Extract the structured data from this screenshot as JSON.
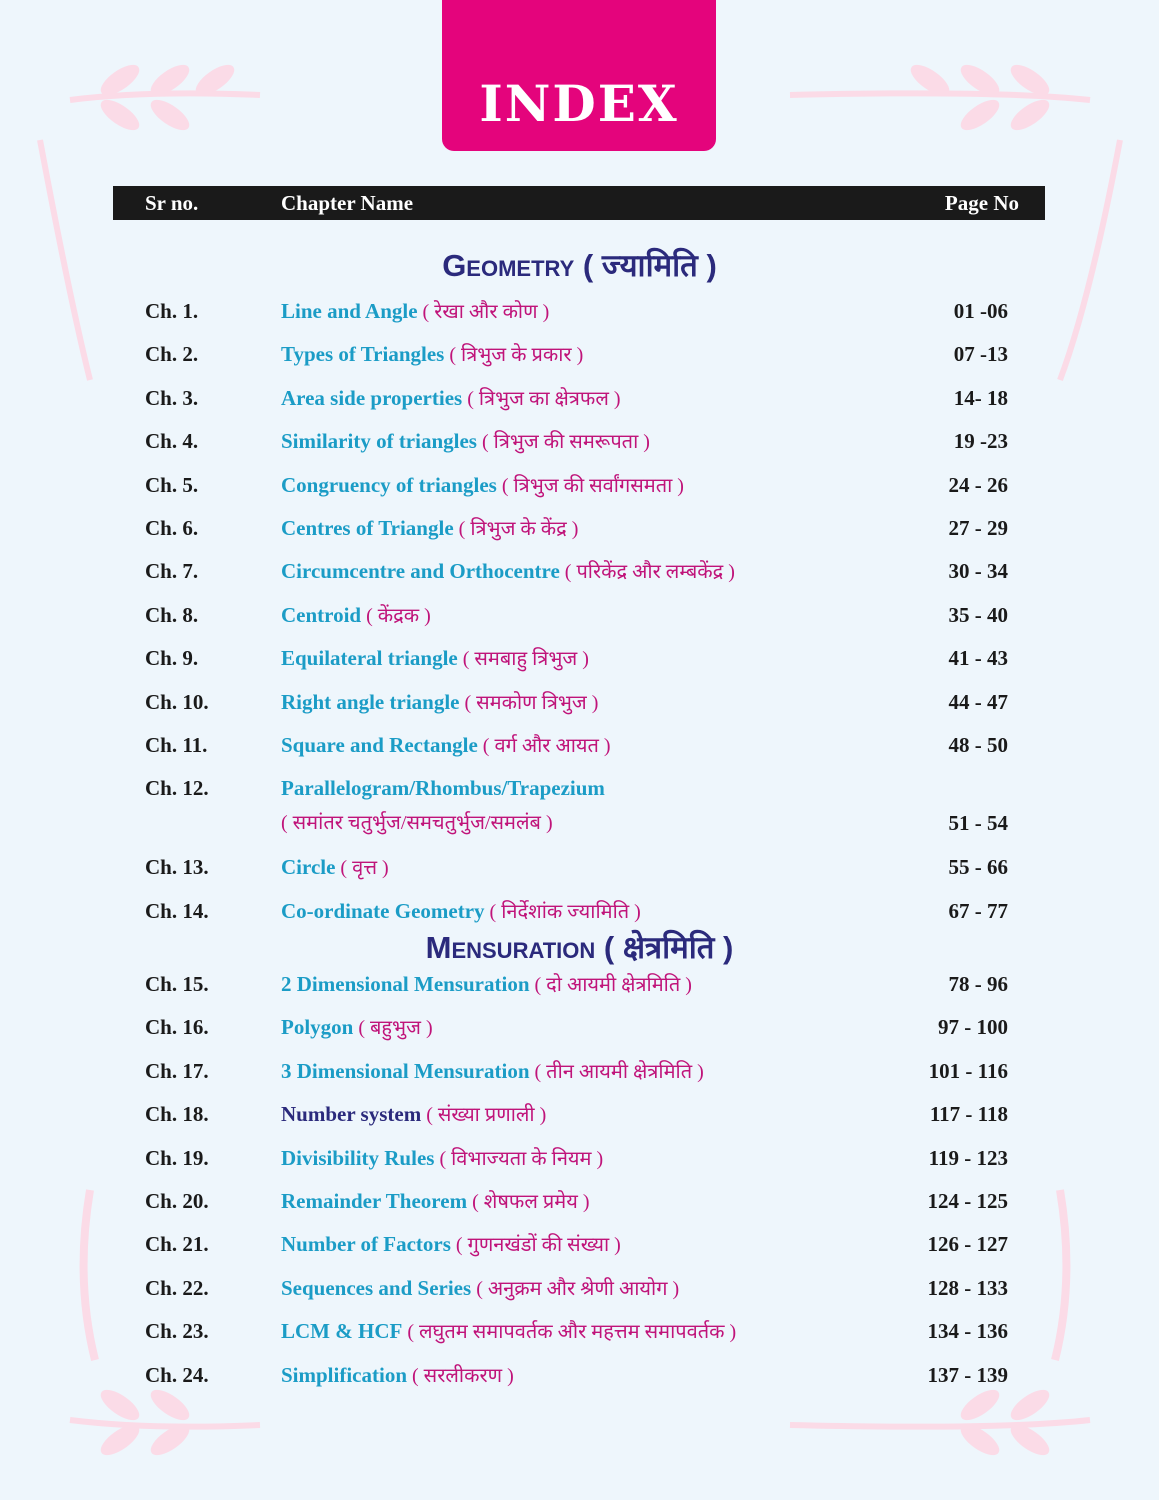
{
  "title": "INDEX",
  "header": {
    "sr": "Sr no.",
    "name": "Chapter Name",
    "page": "Page No"
  },
  "sections": [
    {
      "title": "Geometry",
      "hindi": "( ज्यामिति )"
    },
    {
      "title": "Mensuration",
      "hindi": "( क्षेत्रमिति )"
    }
  ],
  "geometry_rows": [
    {
      "sr": "Ch. 1.",
      "en": "Line and Angle",
      "hi": "( रेखा और कोण )",
      "page": "01 -06"
    },
    {
      "sr": "Ch. 2.",
      "en": "Types of Triangles",
      "hi": "( त्रिभुज के प्रकार )",
      "page": "07 -13"
    },
    {
      "sr": "Ch. 3.",
      "en": "Area side properties",
      "hi": "( त्रिभुज का क्षेत्रफल )",
      "page": "14- 18"
    },
    {
      "sr": "Ch. 4.",
      "en": "Similarity of triangles",
      "hi": "( त्रिभुज की समरूपता )",
      "page": "19 -23"
    },
    {
      "sr": "Ch. 5.",
      "en": "Congruency of triangles",
      "hi": "( त्रिभुज की सर्वांगसमता )",
      "page": "24 - 26"
    },
    {
      "sr": "Ch. 6.",
      "en": "Centres of Triangle",
      "hi": "( त्रिभुज के केंद्र )",
      "page": "27 - 29"
    },
    {
      "sr": "Ch. 7.",
      "en": "Circumcentre and Orthocentre",
      "hi": "( परिकेंद्र और लम्बकेंद्र )",
      "page": "30 - 34"
    },
    {
      "sr": "Ch. 8.",
      "en": "Centroid",
      "hi": "( केंद्रक )",
      "page": "35 - 40"
    },
    {
      "sr": "Ch. 9.",
      "en": "Equilateral triangle",
      "hi": "( समबाहु त्रिभुज )",
      "page": "41 - 43"
    },
    {
      "sr": "Ch. 10.",
      "en": "Right angle triangle",
      "hi": "( समकोण त्रिभुज  )",
      "page": "44 - 47"
    },
    {
      "sr": "Ch. 11.",
      "en": "Square and Rectangle",
      "hi": "( वर्ग और आयत )",
      "page": "48 - 50"
    },
    {
      "sr": "Ch. 12.",
      "en": "Parallelogram/Rhombus/Trapezium",
      "hi2": "( समांतर चतुर्भुज/समचतुर्भुज/समलंब )",
      "page": "51 - 54"
    },
    {
      "sr": "Ch. 13.",
      "en": "Circle",
      "hi": "( वृत्त )",
      "page": "55 - 66"
    },
    {
      "sr": "Ch. 14.",
      "en": "Co-ordinate Geometry",
      "hi": "( निर्देशांक ज्यामिति )",
      "page": "67 - 77"
    }
  ],
  "mensuration_rows": [
    {
      "sr": "Ch. 15.",
      "en": "2 Dimensional Mensuration",
      "hi": "( दो आयमी क्षेत्रमिति )",
      "page": "78 - 96"
    },
    {
      "sr": "Ch. 16.",
      "en": "Polygon",
      "hi": "( बहुभुज )",
      "page": "97 - 100"
    },
    {
      "sr": "Ch. 17.",
      "en": "3 Dimensional Mensuration",
      "hi": "( तीन आयमी क्षेत्रमिति )",
      "page": "101 - 116"
    },
    {
      "sr": "Ch. 18.",
      "en": "Number system",
      "hi": "( संख्या प्रणाली )",
      "page": "117 - 118",
      "navy": true
    },
    {
      "sr": "Ch. 19.",
      "en": "Divisibility Rules",
      "hi": "( विभाज्यता के नियम )",
      "page": "119 - 123"
    },
    {
      "sr": "Ch. 20.",
      "en": "Remainder Theorem",
      "hi": "( शेषफल प्रमेय )",
      "page": "124 - 125"
    },
    {
      "sr": "Ch. 21.",
      "en": "Number of Factors",
      "hi": "( गुणनखंडों की संख्या )",
      "page": "126 - 127"
    },
    {
      "sr": "Ch. 22.",
      "en": "Sequences and Series",
      "hi": "( अनुक्रम और श्रेणी आयोग )",
      "page": "128 - 133"
    },
    {
      "sr": "Ch. 23.",
      "en": "LCM & HCF",
      "hi": "( लघुतम समापवर्तक और महत्तम समापवर्तक )",
      "page": "134 - 136"
    },
    {
      "sr": "Ch. 24.",
      "en": "Simplification",
      "hi": "( सरलीकरण )",
      "page": "137 - 139"
    }
  ],
  "colors": {
    "accent": "#e4047c",
    "chapter": "#1b9cc6",
    "hindi": "#c0147a",
    "heading": "#2b2a7c",
    "background": "#eef6fc"
  }
}
